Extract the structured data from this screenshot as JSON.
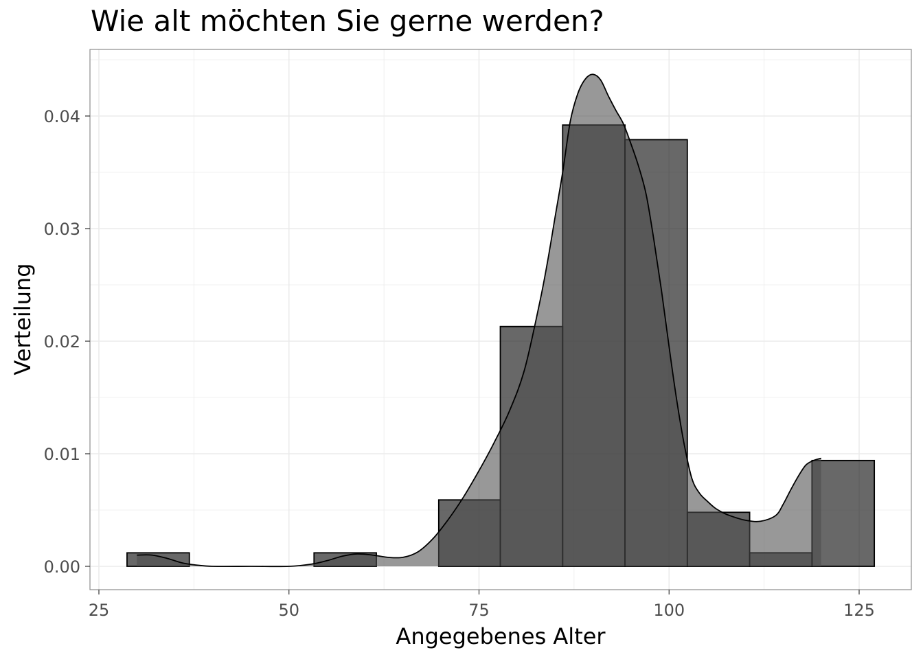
{
  "chart_data": {
    "type": "histogram",
    "title": "Wie alt möchten Sie gerne werden?",
    "xlabel": "Angegebenes Alter",
    "ylabel": "Verteilung",
    "xlim": [
      25,
      128
    ],
    "ylim": [
      0,
      0.045
    ],
    "x_ticks": [
      {
        "value": 25,
        "label": "25"
      },
      {
        "value": 50,
        "label": "50"
      },
      {
        "value": 75,
        "label": "75"
      },
      {
        "value": 100,
        "label": "100"
      },
      {
        "value": 125,
        "label": "125"
      }
    ],
    "y_ticks": [
      {
        "value": 0,
        "label": "0.00"
      },
      {
        "value": 0.01,
        "label": "0.01"
      },
      {
        "value": 0.02,
        "label": "0.02"
      },
      {
        "value": 0.03,
        "label": "0.03"
      },
      {
        "value": 0.04,
        "label": "0.04"
      }
    ],
    "grid": true,
    "histogram_bins": [
      {
        "x0": 28.7,
        "x1": 36.9,
        "density": 0.0012
      },
      {
        "x0": 53.3,
        "x1": 61.5,
        "density": 0.0012
      },
      {
        "x0": 69.7,
        "x1": 77.8,
        "density": 0.0059
      },
      {
        "x0": 77.8,
        "x1": 86.0,
        "density": 0.0213
      },
      {
        "x0": 86.0,
        "x1": 94.2,
        "density": 0.0392
      },
      {
        "x0": 94.2,
        "x1": 102.4,
        "density": 0.0379
      },
      {
        "x0": 102.4,
        "x1": 110.6,
        "density": 0.0048
      },
      {
        "x0": 110.6,
        "x1": 118.8,
        "density": 0.0012
      },
      {
        "x0": 118.8,
        "x1": 127.0,
        "density": 0.0094
      }
    ],
    "density_curve": {
      "x": [
        30,
        32,
        34,
        36,
        38,
        40,
        45,
        50,
        53,
        55,
        57,
        59,
        61,
        63,
        65,
        67,
        69,
        71,
        73,
        75,
        77,
        79,
        81,
        83,
        84,
        85,
        86,
        87,
        88,
        89,
        90,
        91,
        92,
        93,
        94,
        95,
        96,
        97,
        98,
        99,
        100,
        101,
        102,
        103,
        104,
        105,
        106,
        107,
        108,
        110,
        112,
        114,
        115,
        116,
        117,
        118,
        119,
        120
      ],
      "y": [
        0.001,
        0.001,
        0.0007,
        0.0003,
        0.0001,
        0.0,
        0.0,
        0.0,
        0.0002,
        0.0005,
        0.0009,
        0.0011,
        0.001,
        0.0008,
        0.0008,
        0.0013,
        0.0025,
        0.0042,
        0.0062,
        0.0085,
        0.011,
        0.0138,
        0.0175,
        0.0235,
        0.027,
        0.031,
        0.035,
        0.0395,
        0.042,
        0.0433,
        0.0437,
        0.0432,
        0.0418,
        0.0405,
        0.0393,
        0.0375,
        0.0355,
        0.033,
        0.029,
        0.0245,
        0.0195,
        0.0148,
        0.0108,
        0.0078,
        0.0065,
        0.0058,
        0.0052,
        0.0048,
        0.0045,
        0.0041,
        0.004,
        0.0045,
        0.0055,
        0.0068,
        0.008,
        0.009,
        0.0094,
        0.0096
      ]
    },
    "colors": {
      "bar_fill": "#1a1a1a",
      "bar_opacity": 0.66,
      "density_fill": "#4d4d4d",
      "density_opacity": 0.58,
      "stroke": "#000000",
      "grid": "#ebebeb",
      "panel_border": "#8c8c8c"
    }
  }
}
